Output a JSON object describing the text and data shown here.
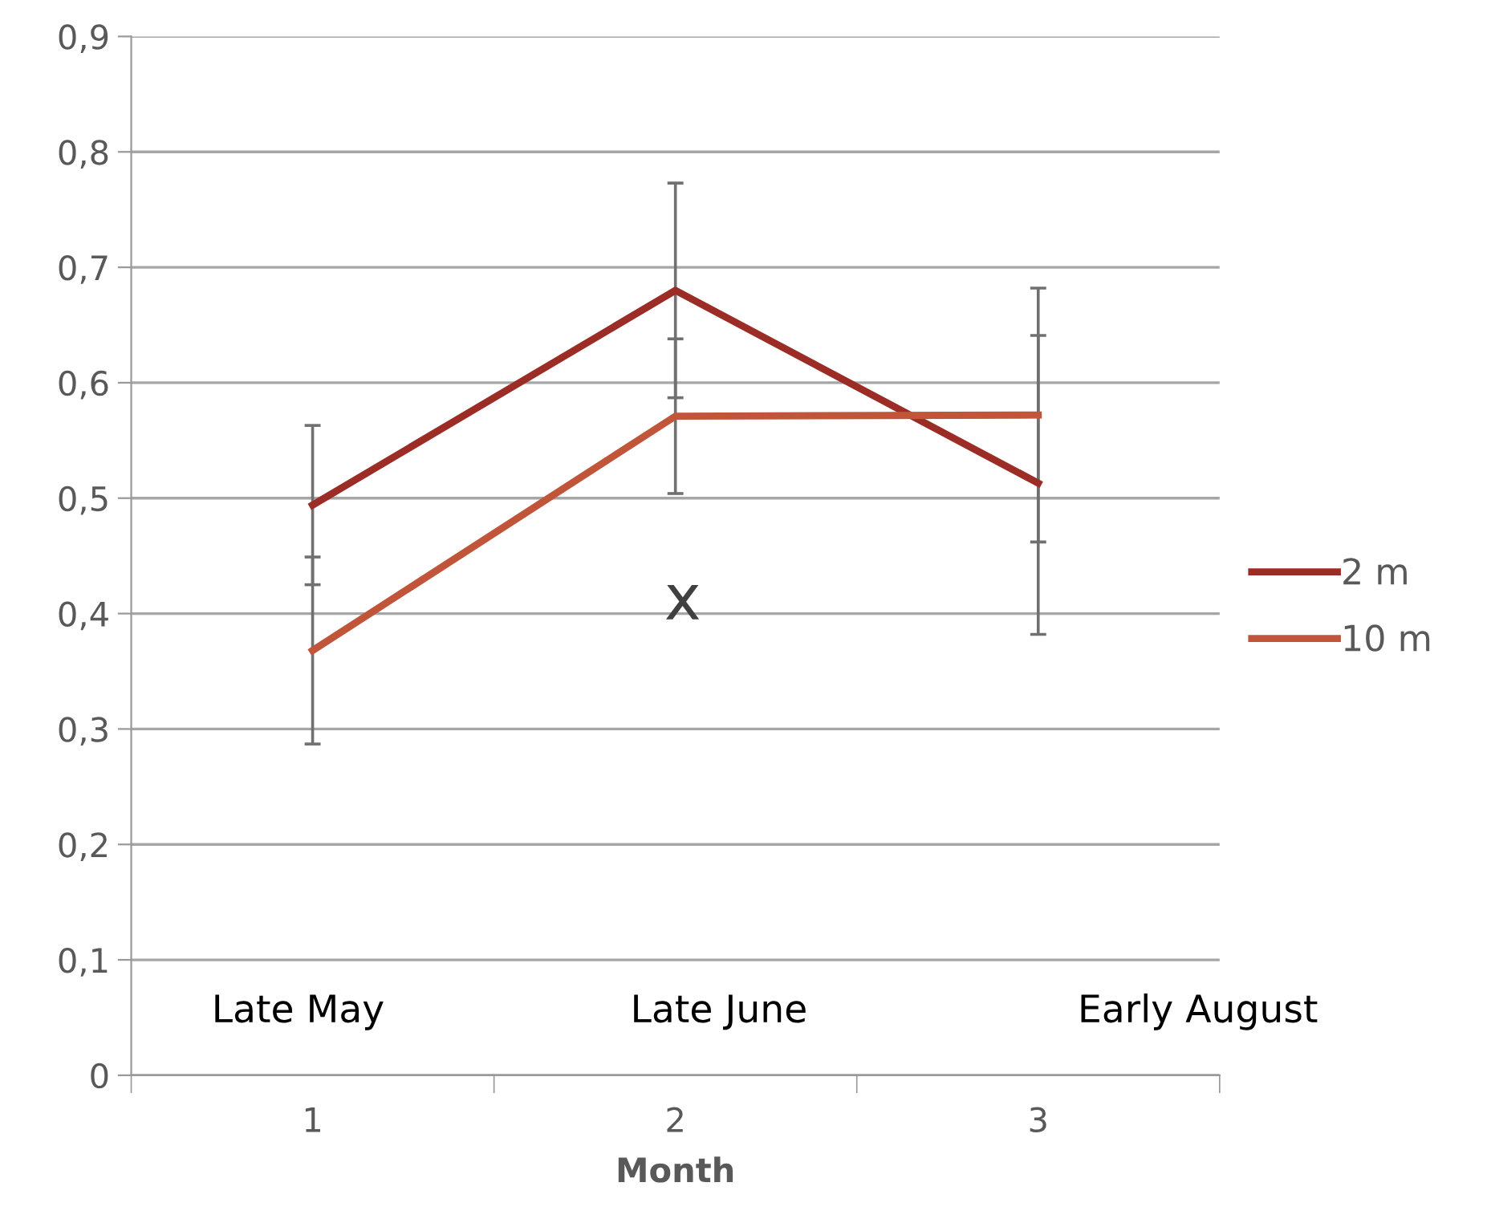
{
  "chart_data": {
    "type": "line",
    "xlabel": "Month",
    "categories": [
      "1",
      "2",
      "3"
    ],
    "series": [
      {
        "name": "2 m",
        "color": "#9b2d26",
        "values": [
          0.494,
          0.68,
          0.513
        ],
        "errors": [
          [
            0.425,
            0.563
          ],
          [
            0.587,
            0.773
          ],
          [
            0.382,
            0.682
          ]
        ]
      },
      {
        "name": "10 m",
        "color": "#c0553a",
        "values": [
          0.368,
          0.571,
          0.572
        ],
        "errors": [
          [
            0.287,
            0.449
          ],
          [
            0.504,
            0.638
          ],
          [
            0.462,
            0.641
          ]
        ]
      }
    ],
    "annotations": [
      "Late May",
      "Late June",
      "Early August",
      "x"
    ],
    "ylim": [
      0,
      0.9
    ],
    "yticks": [
      0,
      {
        "value": 0.1,
        "label": "0,1"
      },
      {
        "value": 0.2,
        "label": "0,2"
      },
      {
        "value": 0.3,
        "label": "0,3"
      },
      {
        "value": 0.4,
        "label": "0,4"
      },
      {
        "value": 0.5,
        "label": "0,5"
      },
      {
        "value": 0.6,
        "label": "0,6"
      },
      {
        "value": 0.7,
        "label": "0,7"
      },
      {
        "value": 0.8,
        "label": "0,8"
      },
      {
        "value": 0.9,
        "label": "0,9"
      }
    ],
    "grid": "y",
    "legend": "right",
    "marker": "none",
    "line_style": "solid"
  }
}
